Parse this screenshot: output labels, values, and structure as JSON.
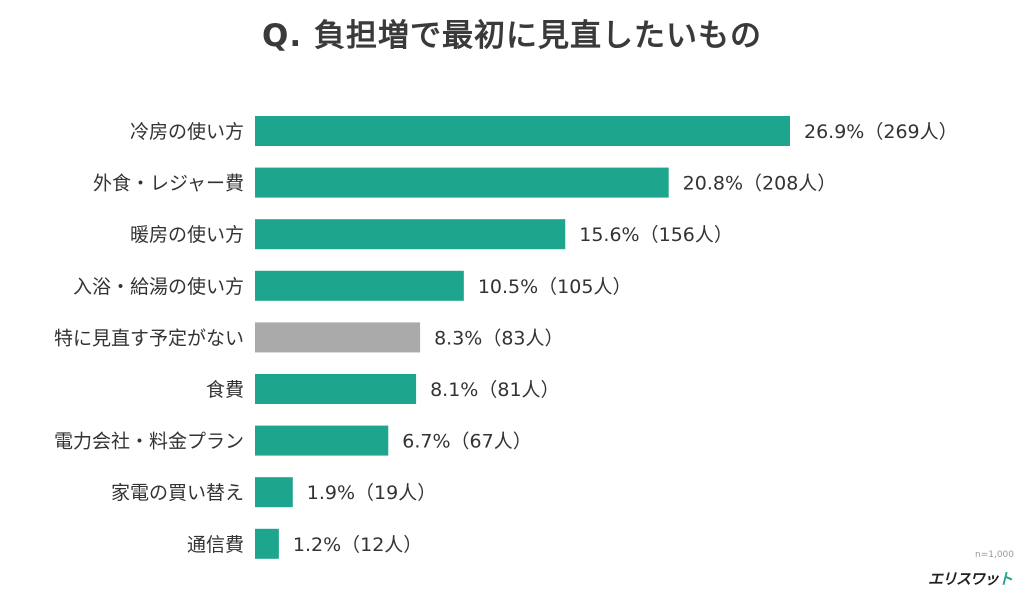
{
  "chart_data": {
    "type": "bar",
    "orientation": "horizontal",
    "title": "Q. 負担増で最初に見直したいもの",
    "categories": [
      "冷房の使い方",
      "外食・レジャー費",
      "暖房の使い方",
      "入浴・給湯の使い方",
      "特に見直す予定がない",
      "食費",
      "電力会社・料金プラン",
      "家電の買い替え",
      "通信費"
    ],
    "values": [
      26.9,
      20.8,
      15.6,
      10.5,
      8.3,
      8.1,
      6.7,
      1.9,
      1.2
    ],
    "counts": [
      269,
      208,
      156,
      105,
      83,
      81,
      67,
      19,
      12
    ],
    "value_labels": [
      "26.9%（269人）",
      "20.8%（208人）",
      "15.6%（156人）",
      "10.5%（105人）",
      "8.3%（83人）",
      "8.1%（81人）",
      "6.7%（67人）",
      "1.9%（19人）",
      "1.2%（12人）"
    ],
    "unit": "%",
    "colors": [
      "#1ea58e",
      "#1ea58e",
      "#1ea58e",
      "#1ea58e",
      "#aaaaaa",
      "#1ea58e",
      "#1ea58e",
      "#1ea58e",
      "#1ea58e"
    ],
    "grid": false,
    "legend": "none"
  },
  "sample_note": "n=1,000",
  "logo": {
    "text": "エリスワット",
    "accent_color": "#1ea58e"
  }
}
